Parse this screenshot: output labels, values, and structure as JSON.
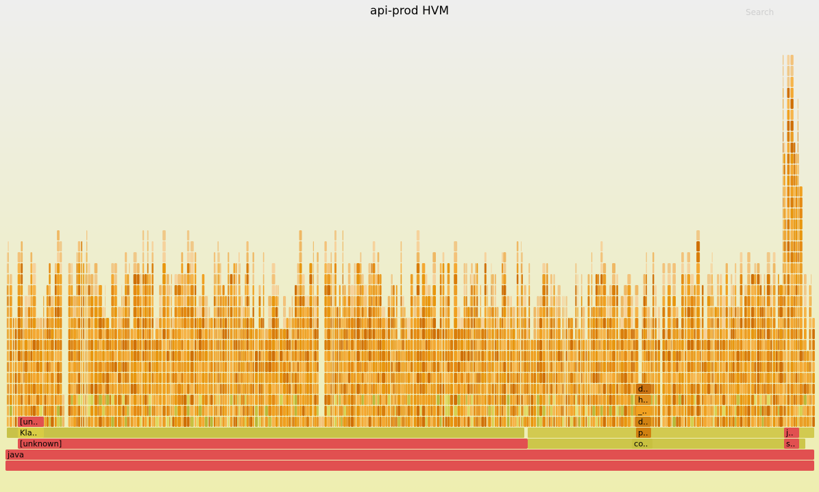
{
  "title": "api-prod HVM",
  "search_label": "Search",
  "colors": {
    "background_top": "#eeeeee",
    "background_bottom": "#eeeeb0",
    "root_frame": "#e15050",
    "jvm_frame": "#d8cc44",
    "java_frame": "#e89a1a",
    "inlined_frame": "#f5b048"
  },
  "labeled_frames": [
    {
      "id": "root",
      "label": "",
      "level": 0
    },
    {
      "id": "java",
      "label": "java",
      "level": 1
    },
    {
      "id": "unknown-main",
      "label": "[unknown]",
      "level": 2
    },
    {
      "id": "co",
      "label": "co..",
      "level": 2
    },
    {
      "id": "s",
      "label": "s..",
      "level": 2
    },
    {
      "id": "kla",
      "label": "Kla..",
      "level": 3
    },
    {
      "id": "p",
      "label": "p..",
      "level": 3
    },
    {
      "id": "j",
      "label": "j..",
      "level": 3
    },
    {
      "id": "un",
      "label": "[un..",
      "level": 4
    },
    {
      "id": "d1",
      "label": "d..",
      "level": 4
    },
    {
      "id": "underscore",
      "label": "_..",
      "level": 5
    },
    {
      "id": "h",
      "label": "h..",
      "level": 6
    },
    {
      "id": "d2",
      "label": "d..",
      "level": 7
    }
  ]
}
